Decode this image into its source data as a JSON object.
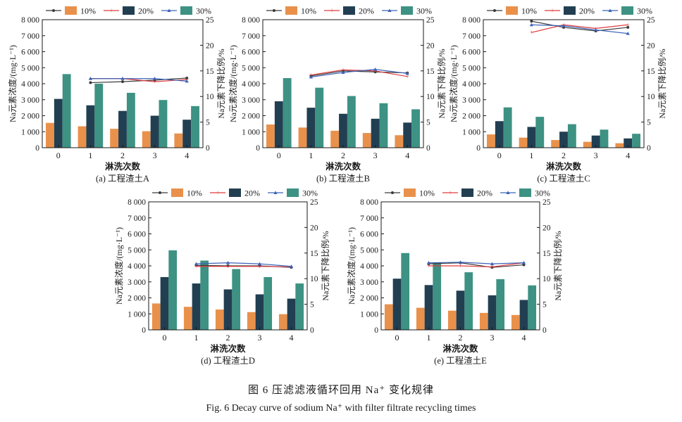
{
  "legend_labels": [
    "10%",
    "20%",
    "30%"
  ],
  "colors": {
    "bar_10": "#E9914B",
    "bar_20": "#223F52",
    "bar_30": "#3D9283",
    "line_10": "#3a3a3a",
    "line_20": "#E03A3E",
    "line_30": "#3C63B7"
  },
  "caption": {
    "zh": "图 6    压滤滤液循环回用 Na⁺ 变化规律",
    "en": "Fig. 6    Decay curve of sodium Na⁺ with filter filtrate recycling times"
  },
  "chart_data": [
    {
      "type": "bar+line",
      "panel_label": "(a) 工程渣土A",
      "xlabel": "淋洗次数",
      "ylabel_left": "Na元素浓度/(mg·L⁻¹)",
      "ylabel_right": "Na元素下降比例/%",
      "categories": [
        "0",
        "1",
        "2",
        "3",
        "4"
      ],
      "ylim_left": [
        0,
        8000
      ],
      "yticks_left": [
        "0",
        "1 000",
        "2 000",
        "3 000",
        "4 000",
        "5 000",
        "6 000",
        "7 000",
        "8 000"
      ],
      "ylim_right": [
        0,
        25
      ],
      "yticks_right": [
        "0",
        "5",
        "10",
        "15",
        "20",
        "25"
      ],
      "bar_series": [
        {
          "name": "10%",
          "values": [
            1550,
            1340,
            1180,
            1030,
            890
          ]
        },
        {
          "name": "20%",
          "values": [
            3050,
            2650,
            2300,
            2000,
            1750
          ]
        },
        {
          "name": "30%",
          "values": [
            4600,
            4000,
            3430,
            2980,
            2600
          ]
        }
      ],
      "line_series": [
        {
          "name": "10%",
          "x": [
            1,
            2,
            3,
            4
          ],
          "values": [
            12.7,
            12.9,
            13.2,
            13.6
          ]
        },
        {
          "name": "20%",
          "x": [
            1,
            2,
            3,
            4
          ],
          "values": [
            13.5,
            13.5,
            12.9,
            13.3
          ]
        },
        {
          "name": "30%",
          "x": [
            1,
            2,
            3,
            4
          ],
          "values": [
            13.5,
            13.5,
            13.5,
            13.0
          ]
        }
      ]
    },
    {
      "type": "bar+line",
      "panel_label": "(b) 工程渣土B",
      "xlabel": "淋洗次数",
      "ylabel_left": "Na元素浓度/(mg·L⁻¹)",
      "ylabel_right": "Na元素下降比例/%",
      "categories": [
        "0",
        "1",
        "2",
        "3",
        "4"
      ],
      "ylim_left": [
        0,
        8000
      ],
      "yticks_left": [
        "0",
        "1 000",
        "2 000",
        "3 000",
        "4 000",
        "5 000",
        "6 000",
        "7 000",
        "8 000"
      ],
      "ylim_right": [
        0,
        25
      ],
      "yticks_right": [
        "0",
        "5",
        "10",
        "15",
        "20",
        "25"
      ],
      "bar_series": [
        {
          "name": "10%",
          "values": [
            1450,
            1260,
            1060,
            920,
            780
          ]
        },
        {
          "name": "20%",
          "values": [
            2900,
            2500,
            2120,
            1810,
            1570
          ]
        },
        {
          "name": "30%",
          "values": [
            4350,
            3750,
            3230,
            2780,
            2400
          ]
        }
      ],
      "line_series": [
        {
          "name": "10%",
          "x": [
            1,
            2,
            3,
            4
          ],
          "values": [
            14.0,
            15.0,
            14.8,
            14.6
          ]
        },
        {
          "name": "20%",
          "x": [
            1,
            2,
            3,
            4
          ],
          "values": [
            14.2,
            15.2,
            15.0,
            13.9
          ]
        },
        {
          "name": "30%",
          "x": [
            1,
            2,
            3,
            4
          ],
          "values": [
            13.8,
            14.7,
            15.3,
            14.5
          ]
        }
      ]
    },
    {
      "type": "bar+line",
      "panel_label": "(c) 工程渣土C",
      "xlabel": "淋洗次数",
      "ylabel_left": "Na元素浓度/(mg·L⁻¹)",
      "ylabel_right": "Na元素下降比例/%",
      "categories": [
        "0",
        "1",
        "2",
        "3",
        "4"
      ],
      "ylim_left": [
        0,
        8000
      ],
      "yticks_left": [
        "0",
        "1 000",
        "2 000",
        "3 000",
        "4 000",
        "5 000",
        "6 000",
        "7 000",
        "8 000"
      ],
      "ylim_right": [
        0,
        25
      ],
      "yticks_right": [
        "0",
        "5",
        "10",
        "15",
        "20",
        "25"
      ],
      "bar_series": [
        {
          "name": "10%",
          "values": [
            830,
            630,
            480,
            370,
            280
          ]
        },
        {
          "name": "20%",
          "values": [
            1660,
            1300,
            1000,
            760,
            580
          ]
        },
        {
          "name": "30%",
          "values": [
            2520,
            1930,
            1470,
            1130,
            870
          ]
        }
      ],
      "line_series": [
        {
          "name": "10%",
          "x": [
            1,
            2,
            3,
            4
          ],
          "values": [
            24.7,
            23.5,
            22.8,
            23.5
          ]
        },
        {
          "name": "20%",
          "x": [
            1,
            2,
            3,
            4
          ],
          "values": [
            22.5,
            24.0,
            23.3,
            24.0
          ]
        },
        {
          "name": "30%",
          "x": [
            1,
            2,
            3,
            4
          ],
          "values": [
            24.0,
            23.8,
            23.0,
            22.3
          ]
        }
      ]
    },
    {
      "type": "bar+line",
      "panel_label": "(d) 工程渣土D",
      "xlabel": "淋洗次数",
      "ylabel_left": "Na元素浓度/(mg·L⁻¹)",
      "ylabel_right": "Na元素下降比例/%",
      "categories": [
        "0",
        "1",
        "2",
        "3",
        "4"
      ],
      "ylim_left": [
        0,
        8000
      ],
      "yticks_left": [
        "0",
        "1 000",
        "2 000",
        "3 000",
        "4 000",
        "5 000",
        "6 000",
        "7 000",
        "8 000"
      ],
      "ylim_right": [
        0,
        25
      ],
      "yticks_right": [
        "0",
        "5",
        "10",
        "15",
        "20",
        "25"
      ],
      "bar_series": [
        {
          "name": "10%",
          "values": [
            1650,
            1440,
            1270,
            1110,
            980
          ]
        },
        {
          "name": "20%",
          "values": [
            3300,
            2900,
            2530,
            2220,
            1950
          ]
        },
        {
          "name": "30%",
          "values": [
            4970,
            4330,
            3800,
            3300,
            2900
          ]
        }
      ],
      "line_series": [
        {
          "name": "10%",
          "x": [
            1,
            2,
            3,
            4
          ],
          "values": [
            12.6,
            12.5,
            12.5,
            12.2
          ]
        },
        {
          "name": "20%",
          "x": [
            1,
            2,
            3,
            4
          ],
          "values": [
            12.4,
            12.4,
            12.4,
            12.3
          ]
        },
        {
          "name": "30%",
          "x": [
            1,
            2,
            3,
            4
          ],
          "values": [
            12.9,
            13.1,
            12.9,
            12.4
          ]
        }
      ]
    },
    {
      "type": "bar+line",
      "panel_label": "(e) 工程渣土E",
      "xlabel": "淋洗次数",
      "ylabel_left": "Na元素浓度/(mg·L⁻¹)",
      "ylabel_right": "Na元素下降比例/%",
      "categories": [
        "0",
        "1",
        "2",
        "3",
        "4"
      ],
      "ylim_left": [
        0,
        8000
      ],
      "yticks_left": [
        "0",
        "1 000",
        "2 000",
        "3 000",
        "4 000",
        "5 000",
        "6 000",
        "7 000",
        "8 000"
      ],
      "ylim_right": [
        0,
        25
      ],
      "yticks_right": [
        "0",
        "5",
        "10",
        "15",
        "20",
        "25"
      ],
      "bar_series": [
        {
          "name": "10%",
          "values": [
            1600,
            1380,
            1200,
            1060,
            930
          ]
        },
        {
          "name": "20%",
          "values": [
            3200,
            2800,
            2450,
            2160,
            1870
          ]
        },
        {
          "name": "30%",
          "values": [
            4800,
            4200,
            3600,
            3170,
            2780
          ]
        }
      ],
      "line_series": [
        {
          "name": "10%",
          "x": [
            1,
            2,
            3,
            4
          ],
          "values": [
            12.9,
            13.1,
            12.2,
            12.7
          ]
        },
        {
          "name": "20%",
          "x": [
            1,
            2,
            3,
            4
          ],
          "values": [
            12.5,
            12.5,
            12.3,
            13.1
          ]
        },
        {
          "name": "30%",
          "x": [
            1,
            2,
            3,
            4
          ],
          "values": [
            13.1,
            13.2,
            12.9,
            13.1
          ]
        }
      ]
    }
  ]
}
